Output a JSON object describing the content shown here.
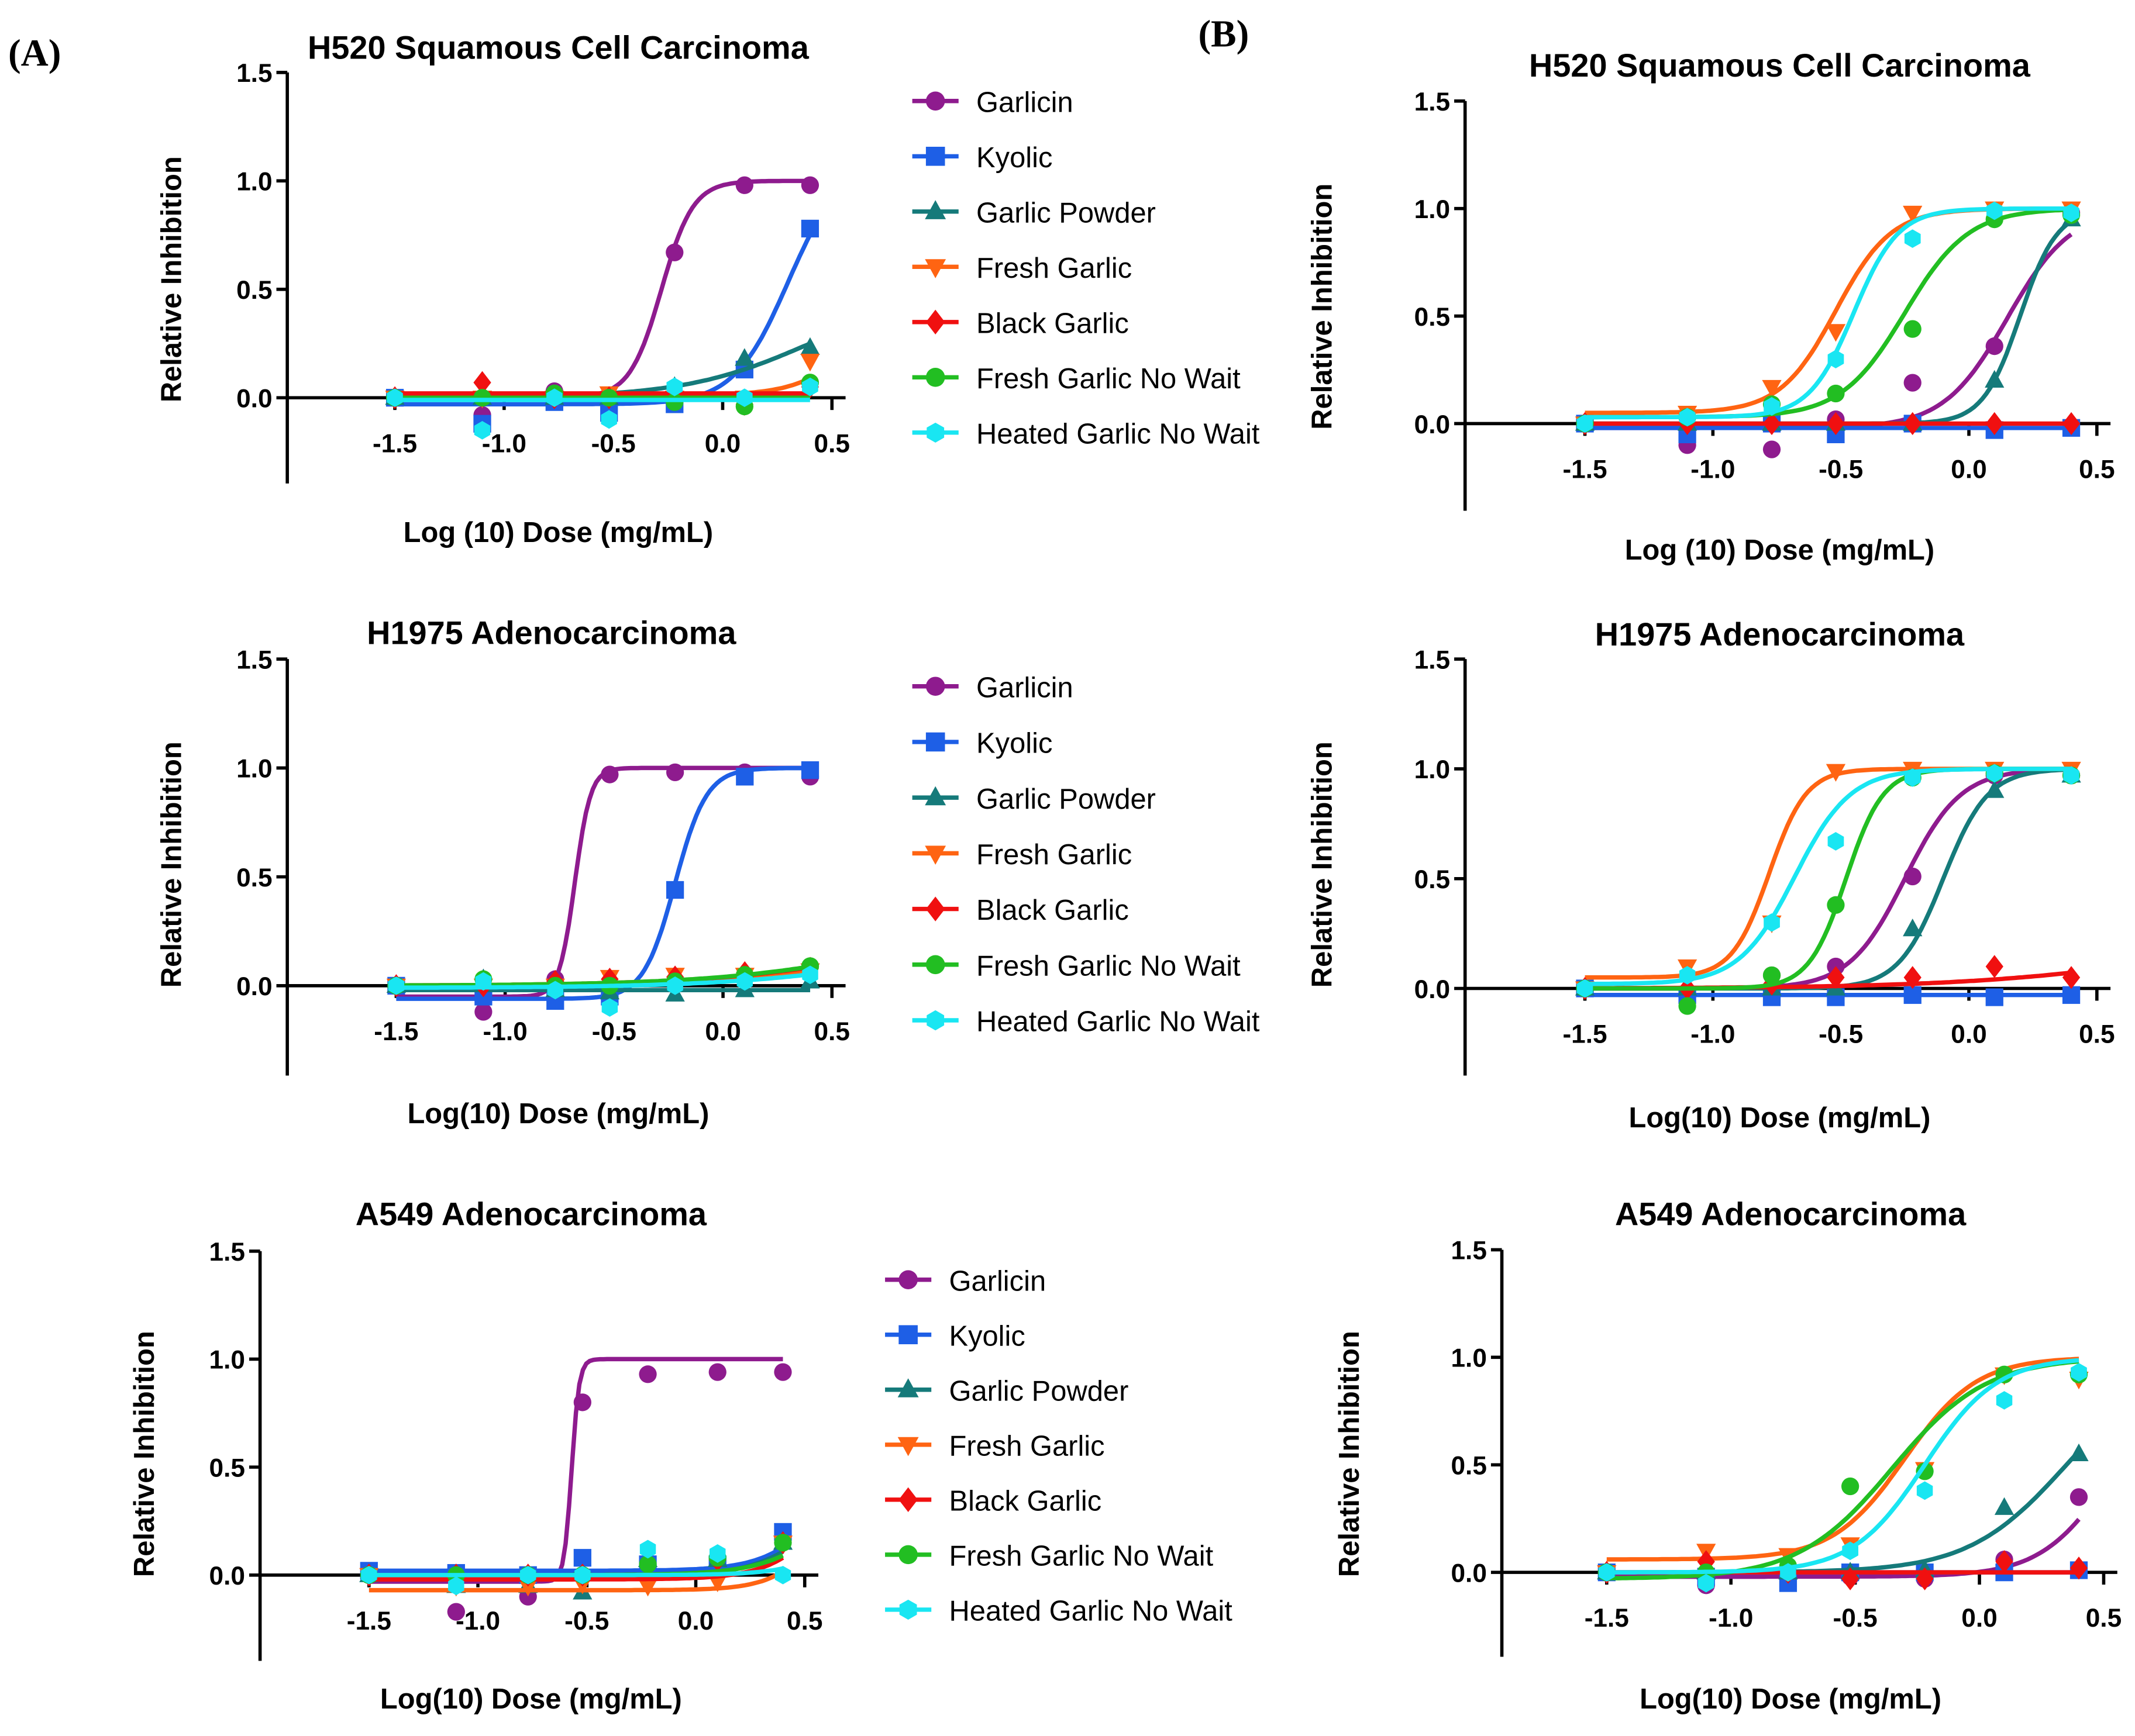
{
  "panel_labels": [
    "(A)",
    "(B)"
  ],
  "series_styles": [
    {
      "name": "Garlicin",
      "color": "#8E1B8E",
      "marker": "circle"
    },
    {
      "name": "Kyolic",
      "color": "#1E5FE6",
      "marker": "square"
    },
    {
      "name": "Garlic Powder",
      "color": "#157A7A",
      "marker": "triangle-up"
    },
    {
      "name": "Fresh Garlic",
      "color": "#FF6412",
      "marker": "triangle-down"
    },
    {
      "name": "Black Garlic",
      "color": "#F01010",
      "marker": "diamond"
    },
    {
      "name": "Fresh Garlic No Wait",
      "color": "#22BE22",
      "marker": "circle"
    },
    {
      "name": "Heated Garlic No Wait",
      "color": "#19E6F2",
      "marker": "hexagon"
    }
  ],
  "chart_data": [
    {
      "panel": "A",
      "type": "line",
      "title": "H520 Squamous Cell Carcinoma",
      "xlabel": "Log (10) Dose (mg/mL)",
      "ylabel": "Relative Inhibition",
      "xlim": [
        -1.5,
        0.5
      ],
      "ylim": [
        -0.4,
        1.5
      ],
      "legend": "right",
      "xticks": [
        "-1.5",
        "-1.0",
        "-0.5",
        "0.0",
        "0.5"
      ],
      "yticks": [
        "0.0",
        "0.5",
        "1.0",
        "1.5"
      ],
      "x": [
        -1.5,
        -1.1,
        -0.77,
        -0.52,
        -0.22,
        0.1,
        0.4
      ],
      "series": [
        {
          "name": "Garlicin",
          "values": [
            0,
            -0.08,
            0.03,
            0,
            0.67,
            0.98,
            0.98
          ],
          "fit": [
            0,
            1,
            -0.28,
            6
          ]
        },
        {
          "name": "Kyolic",
          "values": [
            0,
            -0.12,
            -0.02,
            -0.07,
            -0.03,
            0.13,
            0.78
          ],
          "fit": [
            -0.03,
            1.1,
            0.3,
            3.5
          ]
        },
        {
          "name": "Garlic Powder",
          "values": [
            0,
            0,
            0,
            0,
            0.05,
            0.18,
            0.23
          ],
          "fit": [
            0,
            0.5,
            0.4,
            1.5
          ]
        },
        {
          "name": "Fresh Garlic",
          "values": [
            0,
            0,
            0,
            0.02,
            0,
            0,
            0.17
          ],
          "fit": [
            0.01,
            1,
            0.75,
            3
          ]
        },
        {
          "name": "Black Garlic",
          "values": [
            0,
            0.07,
            0,
            0,
            0,
            -0.03,
            0.05
          ],
          "fit": [
            0.02,
            0.02,
            0,
            1
          ]
        },
        {
          "name": "Fresh Garlic No Wait",
          "values": [
            0,
            0,
            0.02,
            0,
            -0.02,
            -0.04,
            0.07
          ],
          "fit": [
            0,
            0,
            0,
            1
          ]
        },
        {
          "name": "Heated Garlic No Wait",
          "values": [
            0,
            -0.15,
            0,
            -0.1,
            0.05,
            0,
            0.05
          ],
          "fit": [
            -0.01,
            -0.01,
            0,
            1
          ]
        }
      ]
    },
    {
      "panel": "A",
      "type": "line",
      "title": "H1975 Adenocarcinoma",
      "xlabel": "Log(10) Dose (mg/mL)",
      "ylabel": "Relative Inhibition",
      "xlim": [
        -1.5,
        0.5
      ],
      "ylim": [
        -0.4,
        1.5
      ],
      "legend": "right",
      "xticks": [
        "-1.5",
        "-1.0",
        "-0.5",
        "0.0",
        "0.5"
      ],
      "yticks": [
        "0.0",
        "0.5",
        "1.0",
        "1.5"
      ],
      "x": [
        -1.5,
        -1.1,
        -0.77,
        -0.52,
        -0.22,
        0.1,
        0.4
      ],
      "series": [
        {
          "name": "Garlicin",
          "values": [
            0,
            -0.12,
            0.03,
            0.97,
            0.98,
            0.98,
            0.96
          ],
          "fit": [
            -0.05,
            1,
            -0.68,
            12
          ]
        },
        {
          "name": "Kyolic",
          "values": [
            0,
            -0.05,
            -0.07,
            -0.05,
            0.44,
            0.96,
            0.99
          ],
          "fit": [
            -0.06,
            1,
            -0.22,
            6
          ]
        },
        {
          "name": "Garlic Powder",
          "values": [
            0,
            0.03,
            -0.02,
            -0.03,
            -0.04,
            -0.02,
            0.02
          ],
          "fit": [
            -0.02,
            -0.02,
            0,
            1
          ]
        },
        {
          "name": "Fresh Garlic",
          "values": [
            0,
            0,
            0,
            0.04,
            0.05,
            0.05,
            0.07
          ],
          "fit": [
            0,
            0.3,
            0.9,
            1
          ]
        },
        {
          "name": "Black Garlic",
          "values": [
            0,
            0,
            0.02,
            0.03,
            0.04,
            0.06,
            0.08
          ],
          "fit": [
            0,
            0.35,
            0.9,
            1
          ]
        },
        {
          "name": "Fresh Garlic No Wait",
          "values": [
            0,
            0.03,
            0,
            0,
            0.02,
            0.05,
            0.09
          ],
          "fit": [
            0,
            0.4,
            0.95,
            1
          ]
        },
        {
          "name": "Heated Garlic No Wait",
          "values": [
            0,
            0.02,
            -0.02,
            -0.1,
            0,
            0.02,
            0.05
          ],
          "fit": [
            -0.01,
            0.3,
            1,
            1
          ]
        }
      ]
    },
    {
      "panel": "A",
      "type": "line",
      "title": "A549 Adenocarcinoma",
      "xlabel": "Log(10) Dose (mg/mL)",
      "ylabel": "Relative Inhibition",
      "xlim": [
        -1.5,
        0.5
      ],
      "ylim": [
        -0.4,
        1.5
      ],
      "legend": "right",
      "xticks": [
        "-1.5",
        "-1.0",
        "-0.5",
        "0.0",
        "0.5"
      ],
      "yticks": [
        "0.0",
        "0.5",
        "1.0",
        "1.5"
      ],
      "x": [
        -1.5,
        -1.1,
        -0.77,
        -0.52,
        -0.22,
        0.1,
        0.4
      ],
      "series": [
        {
          "name": "Garlicin",
          "values": [
            0,
            -0.17,
            -0.1,
            0.8,
            0.93,
            0.94,
            0.94
          ],
          "fit": [
            -0.03,
            1,
            -0.57,
            25
          ]
        },
        {
          "name": "Kyolic",
          "values": [
            0.02,
            0.01,
            0,
            0.08,
            0.05,
            0.05,
            0.2
          ],
          "fit": [
            0.02,
            1,
            0.7,
            3
          ]
        },
        {
          "name": "Garlic Powder",
          "values": [
            0,
            -0.05,
            -0.05,
            -0.08,
            0.07,
            0.07,
            0.15
          ],
          "fit": [
            -0.01,
            1,
            0.75,
            2.5
          ]
        },
        {
          "name": "Fresh Garlic",
          "values": [
            0,
            -0.05,
            -0.05,
            -0.04,
            -0.05,
            -0.03,
            0.15
          ],
          "fit": [
            -0.07,
            1,
            0.7,
            3.5
          ]
        },
        {
          "name": "Black Garlic",
          "values": [
            0,
            0,
            0,
            0,
            0.05,
            0.07,
            0.15
          ],
          "fit": [
            -0.02,
            1,
            0.72,
            3
          ]
        },
        {
          "name": "Fresh Garlic No Wait",
          "values": [
            0,
            0,
            0,
            0,
            0.05,
            0.08,
            0.15
          ],
          "fit": [
            0,
            1,
            0.8,
            2.5
          ]
        },
        {
          "name": "Heated Garlic No Wait",
          "values": [
            0,
            -0.05,
            0,
            0,
            0.12,
            0.1,
            0
          ],
          "fit": [
            0,
            1,
            0.9,
            3
          ]
        }
      ]
    },
    {
      "panel": "B",
      "type": "line",
      "title": "H520 Squamous Cell Carcinoma",
      "xlabel": "Log (10) Dose (mg/mL)",
      "ylabel": "Relative Inhibition",
      "xlim": [
        -1.5,
        0.5
      ],
      "ylim": [
        -0.4,
        1.5
      ],
      "legend": "none",
      "xticks": [
        "-1.5",
        "-1.0",
        "-0.5",
        "0.0",
        "0.5"
      ],
      "yticks": [
        "0.0",
        "0.5",
        "1.0",
        "1.5"
      ],
      "x": [
        -1.5,
        -1.1,
        -0.77,
        -0.52,
        -0.22,
        0.1,
        0.4
      ],
      "series": [
        {
          "name": "Garlicin",
          "values": [
            0,
            -0.1,
            -0.12,
            0.02,
            0.19,
            0.36,
            0.98
          ],
          "fit": [
            -0.02,
            1,
            0.15,
            3.5
          ]
        },
        {
          "name": "Kyolic",
          "values": [
            0,
            -0.05,
            0,
            -0.05,
            0,
            -0.03,
            -0.02
          ],
          "fit": [
            -0.02,
            -0.02,
            0,
            1
          ]
        },
        {
          "name": "Garlic Powder",
          "values": [
            0,
            0,
            0,
            0,
            0,
            0.2,
            0.95
          ],
          "fit": [
            0,
            1,
            0.2,
            6
          ]
        },
        {
          "name": "Fresh Garlic",
          "values": [
            0,
            0.05,
            0.17,
            0.43,
            0.98,
            1,
            1
          ],
          "fit": [
            0.05,
            1,
            -0.52,
            4
          ]
        },
        {
          "name": "Black Garlic",
          "values": [
            0,
            0,
            0,
            0,
            0,
            0,
            0
          ],
          "fit": [
            0,
            0,
            0,
            1
          ]
        },
        {
          "name": "Fresh Garlic No Wait",
          "values": [
            0,
            0.03,
            0.09,
            0.14,
            0.44,
            0.95,
            0.97
          ],
          "fit": [
            0.03,
            1,
            -0.25,
            3.5
          ]
        },
        {
          "name": "Heated Garlic No Wait",
          "values": [
            0,
            0.03,
            0.08,
            0.3,
            0.86,
            0.99,
            0.98
          ],
          "fit": [
            0.03,
            1,
            -0.45,
            5
          ]
        }
      ]
    },
    {
      "panel": "B",
      "type": "line",
      "title": "H1975 Adenocarcinoma",
      "xlabel": "Log(10) Dose (mg/mL)",
      "ylabel": "Relative Inhibition",
      "xlim": [
        -1.5,
        0.5
      ],
      "ylim": [
        -0.4,
        1.5
      ],
      "legend": "none",
      "xticks": [
        "-1.5",
        "-1.0",
        "-0.5",
        "0.0",
        "0.5"
      ],
      "yticks": [
        "0.0",
        "0.5",
        "1.0",
        "1.5"
      ],
      "x": [
        -1.5,
        -1.1,
        -0.77,
        -0.52,
        -0.22,
        0.1,
        0.4
      ],
      "series": [
        {
          "name": "Garlicin",
          "values": [
            0,
            -0.03,
            0.06,
            0.1,
            0.51,
            0.97,
            0.97
          ],
          "fit": [
            0,
            1,
            -0.25,
            4
          ]
        },
        {
          "name": "Kyolic",
          "values": [
            0,
            -0.03,
            -0.04,
            -0.04,
            -0.03,
            -0.04,
            -0.03
          ],
          "fit": [
            -0.03,
            -0.03,
            0,
            1
          ]
        },
        {
          "name": "Garlic Powder",
          "values": [
            0,
            0,
            0,
            0,
            0.27,
            0.9,
            0.97
          ],
          "fit": [
            0,
            1,
            -0.1,
            5
          ]
        },
        {
          "name": "Fresh Garlic",
          "values": [
            0,
            0.1,
            0.3,
            0.99,
            1,
            1,
            1
          ],
          "fit": [
            0.05,
            1,
            -0.78,
            6
          ]
        },
        {
          "name": "Black Garlic",
          "values": [
            0,
            0,
            0.02,
            0.05,
            0.05,
            0.1,
            0.05
          ],
          "fit": [
            0,
            0.3,
            0.9,
            1
          ]
        },
        {
          "name": "Fresh Garlic No Wait",
          "values": [
            0,
            -0.08,
            0.06,
            0.38,
            0.96,
            0.98,
            0.97
          ],
          "fit": [
            0,
            1,
            -0.48,
            6
          ]
        },
        {
          "name": "Heated Garlic No Wait",
          "values": [
            0,
            0.06,
            0.3,
            0.67,
            0.96,
            0.98,
            0.97
          ],
          "fit": [
            0.02,
            1,
            -0.68,
            4
          ]
        }
      ]
    },
    {
      "panel": "B",
      "type": "line",
      "title": "A549 Adenocarcinoma",
      "xlabel": "Log(10) Dose (mg/mL)",
      "ylabel": "Relative Inhibition",
      "xlim": [
        -1.5,
        0.5
      ],
      "ylim": [
        -0.4,
        1.5
      ],
      "legend": "none",
      "xticks": [
        "-1.5",
        "-1.0",
        "-0.5",
        "0.0",
        "0.5"
      ],
      "yticks": [
        "0.0",
        "0.5",
        "1.0",
        "1.5"
      ],
      "x": [
        -1.5,
        -1.1,
        -0.77,
        -0.52,
        -0.22,
        0.1,
        0.4
      ],
      "series": [
        {
          "name": "Garlicin",
          "values": [
            0,
            -0.06,
            -0.03,
            -0.02,
            -0.03,
            0.06,
            0.35
          ],
          "fit": [
            -0.02,
            1,
            0.55,
            3
          ]
        },
        {
          "name": "Kyolic",
          "values": [
            0,
            -0.02,
            -0.05,
            0,
            0,
            0,
            0.01
          ],
          "fit": [
            0,
            0,
            0,
            1
          ]
        },
        {
          "name": "Garlic Powder",
          "values": [
            0,
            0,
            0,
            0,
            0.01,
            0.3,
            0.55
          ],
          "fit": [
            0,
            1,
            0.35,
            2.2
          ]
        },
        {
          "name": "Fresh Garlic",
          "values": [
            0,
            0.1,
            0.08,
            0.13,
            0.48,
            0.92,
            0.9
          ],
          "fit": [
            0.06,
            1,
            -0.3,
            3
          ]
        },
        {
          "name": "Black Garlic",
          "values": [
            0,
            0.05,
            0,
            -0.03,
            -0.03,
            0.05,
            0.02
          ],
          "fit": [
            0,
            0,
            0,
            1
          ]
        },
        {
          "name": "Fresh Garlic No Wait",
          "values": [
            0,
            0,
            0.03,
            0.4,
            0.47,
            0.92,
            0.92
          ],
          "fit": [
            -0.03,
            1,
            -0.35,
            2.3
          ]
        },
        {
          "name": "Heated Garlic No Wait",
          "values": [
            0,
            -0.05,
            0,
            0.1,
            0.38,
            0.8,
            0.93
          ],
          "fit": [
            0,
            1,
            -0.22,
            3
          ]
        }
      ]
    }
  ]
}
